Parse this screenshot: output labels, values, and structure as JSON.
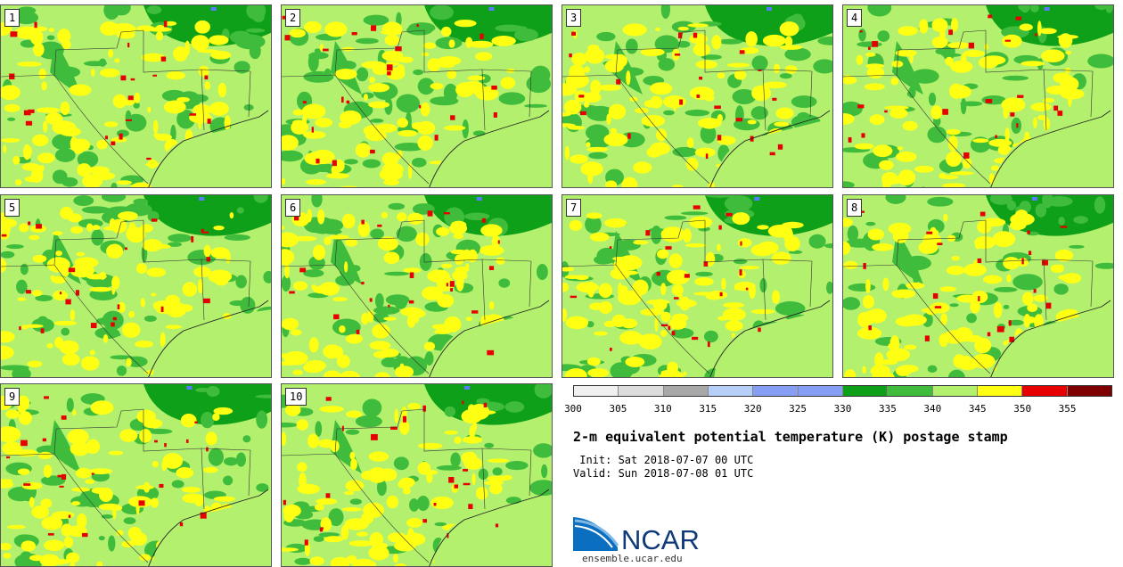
{
  "stamps": [
    {
      "label": "1"
    },
    {
      "label": "2"
    },
    {
      "label": "3"
    },
    {
      "label": "4"
    },
    {
      "label": "5"
    },
    {
      "label": "6"
    },
    {
      "label": "7"
    },
    {
      "label": "8"
    },
    {
      "label": "9"
    },
    {
      "label": "10"
    }
  ],
  "colorbar": {
    "ticks": [
      "300",
      "305",
      "310",
      "315",
      "320",
      "325",
      "330",
      "335",
      "340",
      "345",
      "350",
      "355"
    ],
    "colors": [
      "#f0f0f0",
      "#dcdcdc",
      "#a9a9a9",
      "#b6cff9",
      "#879ef5",
      "#879ef5",
      "#0ea018",
      "#3fbc3b",
      "#b3f06e",
      "#ffff14",
      "#e60000",
      "#7f0000"
    ]
  },
  "colors": {
    "base": "#b3f06e",
    "mid_green": "#3fbc3b",
    "dark_green": "#0ea018",
    "yellow": "#ffff14",
    "red": "#e60000",
    "water": "#5a7cff"
  },
  "title": "2-m equivalent potential temperature (K) postage stamp",
  "init": " Init: Sat 2018-07-07 00 UTC",
  "valid": "Valid: Sun 2018-07-08 01 UTC",
  "logo": {
    "text": "NCAR",
    "site": "ensemble.ucar.edu"
  }
}
